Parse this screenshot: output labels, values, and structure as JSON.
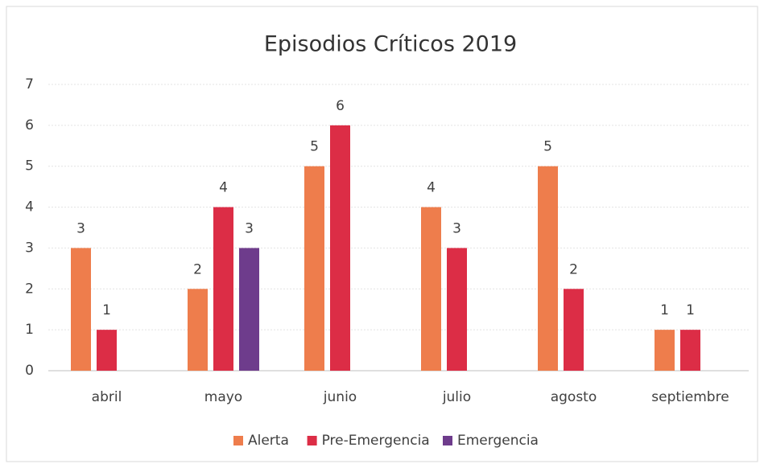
{
  "chart_data": {
    "type": "bar",
    "title": "Episodios Críticos 2019",
    "categories": [
      "abril",
      "mayo",
      "junio",
      "julio",
      "agosto",
      "septiembre"
    ],
    "series": [
      {
        "name": "Alerta",
        "color": "#ee7d4c",
        "values": [
          3,
          2,
          5,
          4,
          5,
          1
        ]
      },
      {
        "name": "Pre-Emergencia",
        "color": "#dc2d46",
        "values": [
          1,
          4,
          6,
          3,
          2,
          1
        ]
      },
      {
        "name": "Emergencia",
        "color": "#6e3c8c",
        "values": [
          null,
          3,
          null,
          null,
          null,
          null
        ]
      }
    ],
    "ylim": [
      0,
      7
    ],
    "yticks": [
      0,
      1,
      2,
      3,
      4,
      5,
      6,
      7
    ],
    "grid": true,
    "legend": "bottom"
  }
}
